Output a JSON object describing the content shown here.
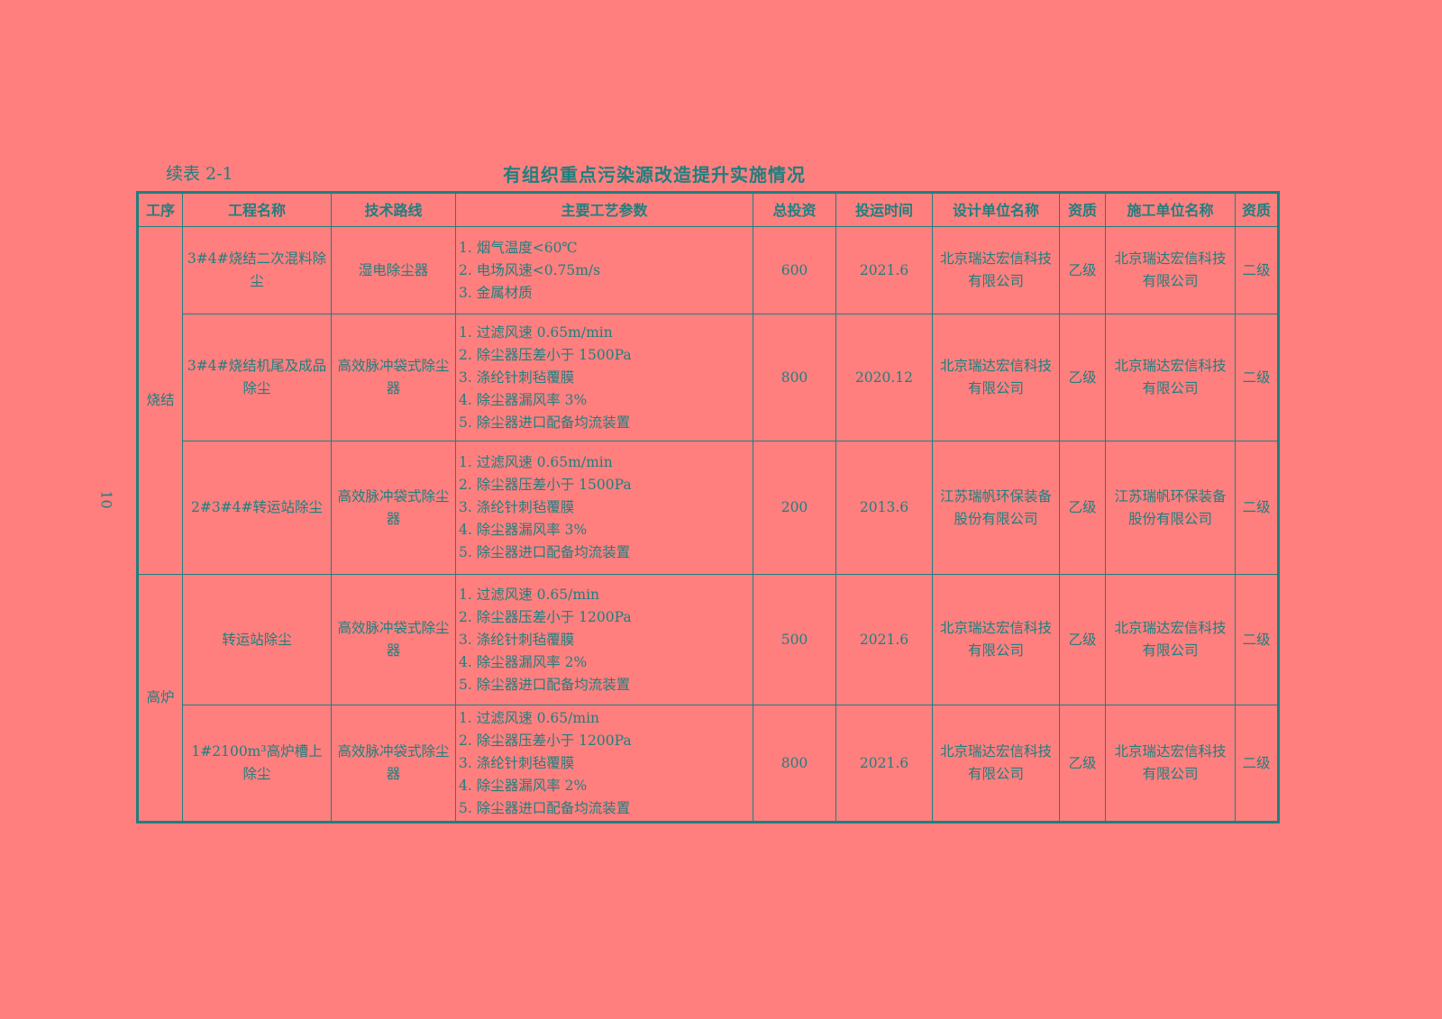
{
  "caption": "续表 2-1",
  "title": "有组织重点污染源改造提升实施情况",
  "page_number": "10",
  "colors": {
    "background": "#ff7f7f",
    "text": "#1f7f7f"
  },
  "table": {
    "headers": [
      "工序",
      "工程名称",
      "技术路线",
      "主要工艺参数",
      "总投资",
      "投运时间",
      "设计单位名称",
      "资质",
      "施工单位名称",
      "资质"
    ],
    "groups": [
      {
        "process": "烧结",
        "rows": [
          {
            "name": "3#4#烧结二次混料除尘",
            "tech": "湿电除尘器",
            "params": [
              "1. 烟气温度<60℃",
              "2. 电场风速<0.75m/s",
              "3. 金属材质"
            ],
            "investment": "600",
            "date": "2021.6",
            "designer": "北京瑞达宏信科技有限公司",
            "designer_grade": "乙级",
            "builder": "北京瑞达宏信科技有限公司",
            "builder_grade": "二级"
          },
          {
            "name": "3#4#烧结机尾及成品除尘",
            "tech": "高效脉冲袋式除尘器",
            "params": [
              "1. 过滤风速 0.65m/min",
              "2. 除尘器压差小于 1500Pa",
              "3. 涤纶针刺毡覆膜",
              "4. 除尘器漏风率 3%",
              "5. 除尘器进口配备均流装置"
            ],
            "investment": "800",
            "date": "2020.12",
            "designer": "北京瑞达宏信科技有限公司",
            "designer_grade": "乙级",
            "builder": "北京瑞达宏信科技有限公司",
            "builder_grade": "二级"
          },
          {
            "name": "2#3#4#转运站除尘",
            "tech": "高效脉冲袋式除尘器",
            "params": [
              "1. 过滤风速 0.65m/min",
              "2. 除尘器压差小于 1500Pa",
              "3. 涤纶针刺毡覆膜",
              "4. 除尘器漏风率 3%",
              "5. 除尘器进口配备均流装置"
            ],
            "investment": "200",
            "date": "2013.6",
            "designer": "江苏瑞帆环保装备股份有限公司",
            "designer_grade": "乙级",
            "builder": "江苏瑞帆环保装备股份有限公司",
            "builder_grade": "二级"
          }
        ]
      },
      {
        "process": "高炉",
        "rows": [
          {
            "name": "转运站除尘",
            "tech": "高效脉冲袋式除尘器",
            "params": [
              "1. 过滤风速 0.65/min",
              "2. 除尘器压差小于 1200Pa",
              "3. 涤纶针刺毡覆膜",
              "4. 除尘器漏风率 2%",
              "5. 除尘器进口配备均流装置"
            ],
            "investment": "500",
            "date": "2021.6",
            "designer": "北京瑞达宏信科技有限公司",
            "designer_grade": "乙级",
            "builder": "北京瑞达宏信科技有限公司",
            "builder_grade": "二级"
          },
          {
            "name": "1#2100m³高炉槽上除尘",
            "tech": "高效脉冲袋式除尘器",
            "params": [
              "1. 过滤风速 0.65/min",
              "2. 除尘器压差小于 1200Pa",
              "3. 涤纶针刺毡覆膜",
              "4. 除尘器漏风率 2%",
              "5. 除尘器进口配备均流装置"
            ],
            "investment": "800",
            "date": "2021.6",
            "designer": "北京瑞达宏信科技有限公司",
            "designer_grade": "乙级",
            "builder": "北京瑞达宏信科技有限公司",
            "builder_grade": "二级"
          }
        ]
      }
    ]
  }
}
